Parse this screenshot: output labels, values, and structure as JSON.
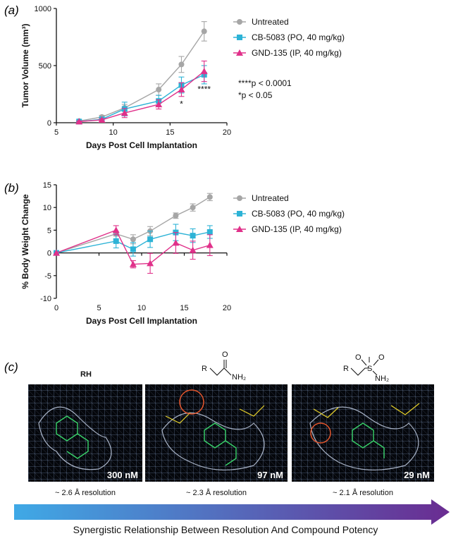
{
  "panels": {
    "a": "(a)",
    "b": "(b)",
    "c": "(c)"
  },
  "legend": {
    "untreated": "Untreated",
    "cb5083": "CB-5083 (PO, 40 mg/kg)",
    "gnd135": "GND-135 (IP, 40 mg/kg)"
  },
  "colors": {
    "untreated": "#a6a6a6",
    "cb5083": "#2db3d6",
    "gnd135": "#e0318a",
    "arrow_start": "#3fa9e6",
    "arrow_end": "#6a2c91"
  },
  "chart_data": [
    {
      "type": "line",
      "panel": "a",
      "xlabel": "Days Post Cell Implantation",
      "ylabel": "Tumor Volume (mm³)",
      "xlim": [
        5,
        20
      ],
      "ylim": [
        0,
        1000
      ],
      "xticks": [
        5,
        10,
        15,
        20
      ],
      "yticks": [
        0,
        500,
        1000
      ],
      "series": [
        {
          "name": "Untreated",
          "marker": "circle",
          "x": [
            7,
            9,
            11,
            14,
            16,
            18
          ],
          "y": [
            15,
            50,
            130,
            290,
            510,
            800
          ],
          "err": [
            5,
            15,
            30,
            50,
            70,
            85
          ]
        },
        {
          "name": "CB-5083 (PO, 40 mg/kg)",
          "marker": "square",
          "x": [
            7,
            9,
            11,
            14,
            16,
            18
          ],
          "y": [
            10,
            30,
            120,
            190,
            330,
            420
          ],
          "err": [
            5,
            10,
            60,
            50,
            70,
            80
          ]
        },
        {
          "name": "GND-135 (IP, 40 mg/kg)",
          "marker": "triangle",
          "x": [
            7,
            9,
            11,
            14,
            16,
            18
          ],
          "y": [
            10,
            25,
            85,
            160,
            290,
            450
          ],
          "err": [
            5,
            10,
            40,
            40,
            60,
            90
          ]
        }
      ],
      "annotations": {
        "stats": [
          "****p < 0.0001",
          "*p < 0.05"
        ],
        "marks": [
          {
            "text": "*",
            "x": 16,
            "y": 140
          },
          {
            "text": "****",
            "x": 18,
            "y": 270
          }
        ]
      }
    },
    {
      "type": "line",
      "panel": "b",
      "xlabel": "Days Post Cell Implantation",
      "ylabel": "% Body Weight Change",
      "xlim": [
        0,
        20
      ],
      "ylim": [
        -10,
        15
      ],
      "xticks": [
        0,
        5,
        10,
        15,
        20
      ],
      "yticks": [
        -10,
        -5,
        0,
        5,
        10,
        15
      ],
      "series": [
        {
          "name": "Untreated",
          "marker": "circle",
          "x": [
            0,
            7,
            9,
            11,
            14,
            16,
            18
          ],
          "y": [
            0,
            4.2,
            3.0,
            4.8,
            8.2,
            10.0,
            12.3
          ],
          "err": [
            0,
            0.5,
            1.0,
            1.0,
            0.6,
            0.8,
            0.8
          ]
        },
        {
          "name": "CB-5083 (PO, 40 mg/kg)",
          "marker": "square",
          "x": [
            0,
            7,
            9,
            11,
            14,
            16,
            18
          ],
          "y": [
            0,
            2.6,
            0.8,
            3.0,
            4.5,
            3.8,
            4.6
          ],
          "err": [
            0,
            1.5,
            1.5,
            1.8,
            1.8,
            1.5,
            1.4
          ]
        },
        {
          "name": "GND-135 (IP, 40 mg/kg)",
          "marker": "triangle",
          "x": [
            0,
            7,
            9,
            11,
            14,
            16,
            18
          ],
          "y": [
            0,
            5.0,
            -2.5,
            -2.3,
            2.2,
            0.6,
            1.7
          ],
          "err": [
            0,
            1.0,
            0.8,
            2.2,
            2.3,
            2.0,
            2.3
          ]
        }
      ]
    }
  ],
  "panel_c": {
    "images": [
      {
        "title": "RH",
        "potency": "300 nM",
        "resolution": "~ 2.6 Å resolution"
      },
      {
        "title": "",
        "potency": "97 nM",
        "resolution": "~ 2.3 Å resolution",
        "structure_labels": {
          "r": "R",
          "o": "O",
          "n": "NH₂"
        }
      },
      {
        "title": "",
        "potency": "29 nM",
        "resolution": "~ 2.1 Å resolution",
        "structure_labels": {
          "r": "R",
          "s": "S",
          "o1": "O",
          "o2": "O",
          "n": "NH₂"
        }
      }
    ],
    "caption": "Synergistic Relationship Between Resolution And Compound Potency"
  }
}
